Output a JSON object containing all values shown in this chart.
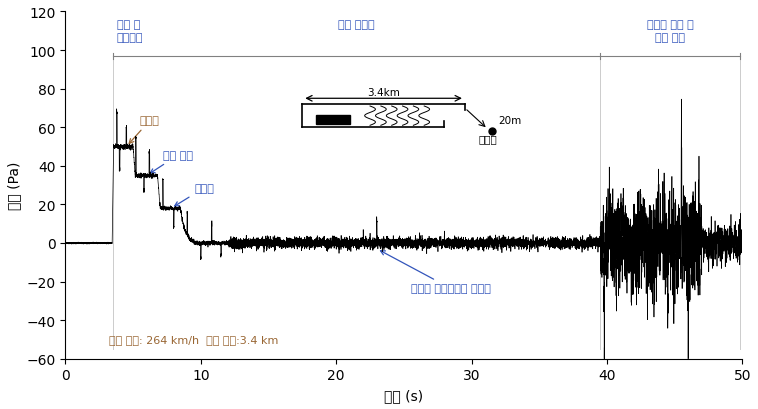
{
  "xlabel": "시간 (s)",
  "ylabel": "압력 (Pa)",
  "xlim": [
    0,
    50
  ],
  "ylim": [
    -60,
    120
  ],
  "yticks": [
    -60,
    -40,
    -20,
    0,
    20,
    40,
    60,
    80,
    100,
    120
  ],
  "xticks": [
    0,
    10,
    20,
    30,
    40,
    50
  ],
  "label_jinip": "진입 시\n미기압파",
  "label_yonsok": "연속 압력파",
  "label_gwancheok": "관측점 통과 시\n압력 변동",
  "label_seonduboo": "선두부",
  "label_benter": "벤터 커버",
  "label_humiboo": "후미부",
  "label_repeat": "진입시 미기압파의 반복파",
  "label_info": "열차 속도: 264 km/h  터널 길이:3.4 km",
  "label_34km": "3.4km",
  "label_20m": "20m",
  "label_gwancheokjeom": "관측점",
  "color_blue": "#3355bb",
  "color_brown": "#996633",
  "color_black": "#000000",
  "color_gray": "#888888",
  "signal_color": "#000000",
  "background_color": "#ffffff",
  "bracket_y": 97,
  "vline_x1": 3.5,
  "vline_x2": 39.5,
  "vline_x3": 49.8
}
